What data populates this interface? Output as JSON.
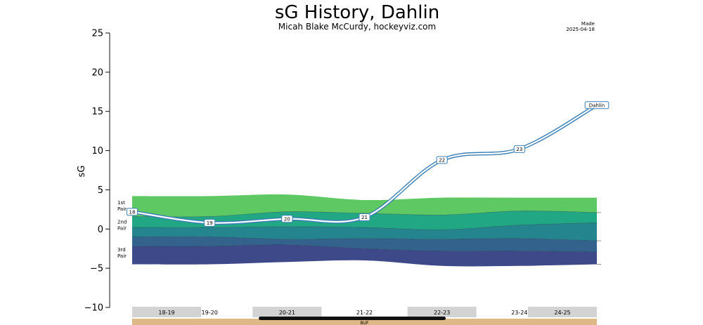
{
  "chart_data": {
    "type": "line",
    "title": "sG History, Dahlin",
    "subtitle": "Micah Blake McCurdy, hockeyviz.com",
    "made_label": "Made",
    "made_date": "2025-04-18",
    "ylabel": "sG",
    "ylim": [
      -10,
      25
    ],
    "yticks": [
      25,
      20,
      15,
      10,
      5,
      0,
      -5,
      -10
    ],
    "seasons": [
      "18-19",
      "19-20",
      "20-21",
      "21-22",
      "22-23",
      "23-24",
      "24-25"
    ],
    "season_shaded": [
      true,
      false,
      true,
      false,
      true,
      false,
      true
    ],
    "team": "BUF",
    "band_labels": [
      {
        "line1": "1st",
        "line2": "Pair",
        "at": 3.0
      },
      {
        "line1": "2nd",
        "line2": "Pair",
        "at": 0.5
      },
      {
        "line1": "3rd",
        "line2": "Pair",
        "at": -3.0
      }
    ],
    "bands": {
      "x": [
        0,
        1,
        2,
        3,
        4,
        5,
        6
      ],
      "boundaries": [
        [
          4.2,
          4.2,
          4.4,
          3.7,
          4.0,
          4.0,
          4.0
        ],
        [
          1.6,
          1.6,
          2.2,
          2.0,
          1.8,
          2.3,
          2.1
        ],
        [
          0.2,
          0.2,
          0.3,
          0.2,
          -0.1,
          0.5,
          0.8
        ],
        [
          -1.0,
          -1.0,
          -1.3,
          -1.2,
          -1.3,
          -1.2,
          -1.5
        ],
        [
          -2.2,
          -2.2,
          -2.0,
          -2.5,
          -2.8,
          -2.8,
          -2.9
        ],
        [
          -4.5,
          -4.5,
          -4.2,
          -4.0,
          -4.7,
          -4.7,
          -4.5
        ]
      ],
      "colors": [
        "#5ec962",
        "#22a784",
        "#25858e",
        "#33638d",
        "#3e4989"
      ]
    },
    "series": [
      {
        "name": "Dahlin",
        "color": "#3a7fb5",
        "points": [
          {
            "x": 0.0,
            "y": 2.2,
            "label": "18"
          },
          {
            "x": 1.0,
            "y": 0.8,
            "label": "19"
          },
          {
            "x": 2.0,
            "y": 1.3,
            "label": "20"
          },
          {
            "x": 3.0,
            "y": 1.5,
            "label": "21"
          },
          {
            "x": 4.0,
            "y": 8.8,
            "label": "22"
          },
          {
            "x": 5.0,
            "y": 10.2,
            "label": "23"
          },
          {
            "x": 6.0,
            "y": 15.8,
            "label": "Dahlin"
          }
        ]
      }
    ]
  }
}
